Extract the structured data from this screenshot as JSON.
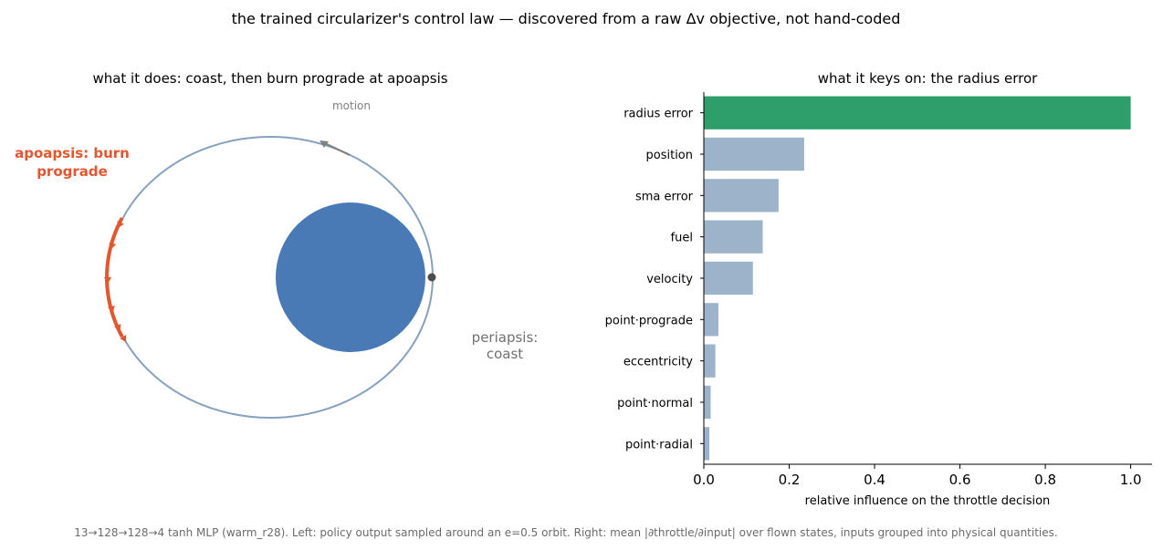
{
  "figure": {
    "title": "the trained circularizer's control law — discovered from a raw Δv objective, not hand-coded",
    "footnote": "13→128→128→4 tanh MLP (warm_r28). Left: policy output sampled around an e=0.5 orbit. Right: mean |∂throttle/∂input| over flown states, inputs grouped into physical quantities."
  },
  "colors": {
    "orbit": "#86a1bd",
    "planet": "#4a7ab5",
    "burn": "#e2572e",
    "motion_arrow": "#808080",
    "periapsis_marker": "#4d4d4d",
    "top_bar": "#2e9e6a",
    "other_bars": "#9db3ca",
    "coast_label": "#707070"
  },
  "chart_data": [
    {
      "type": "diagram",
      "title": "what it does: coast, then burn prograde at apoapsis",
      "orbit_eccentricity": 0.5,
      "annotations": {
        "motion": "motion",
        "apoapsis": "apoapsis: burn\nprograde",
        "periapsis": "periapsis:\ncoast"
      },
      "burn_arc_degrees": [
        155,
        205
      ]
    },
    {
      "type": "bar",
      "orientation": "horizontal",
      "title": "what it keys on: the radius error",
      "xlabel": "relative influence on the throttle decision",
      "ylabel": "",
      "xlim": [
        0,
        1.05
      ],
      "xticks": [
        0.0,
        0.2,
        0.4,
        0.6,
        0.8,
        1.0
      ],
      "xtick_labels": [
        "0.0",
        "0.2",
        "0.4",
        "0.6",
        "0.8",
        "1.0"
      ],
      "categories": [
        "radius error",
        "position",
        "sma error",
        "fuel",
        "velocity",
        "point·prograde",
        "eccentricity",
        "point·normal",
        "point·radial"
      ],
      "values": [
        1.0,
        0.235,
        0.175,
        0.138,
        0.115,
        0.034,
        0.027,
        0.016,
        0.013
      ]
    }
  ]
}
